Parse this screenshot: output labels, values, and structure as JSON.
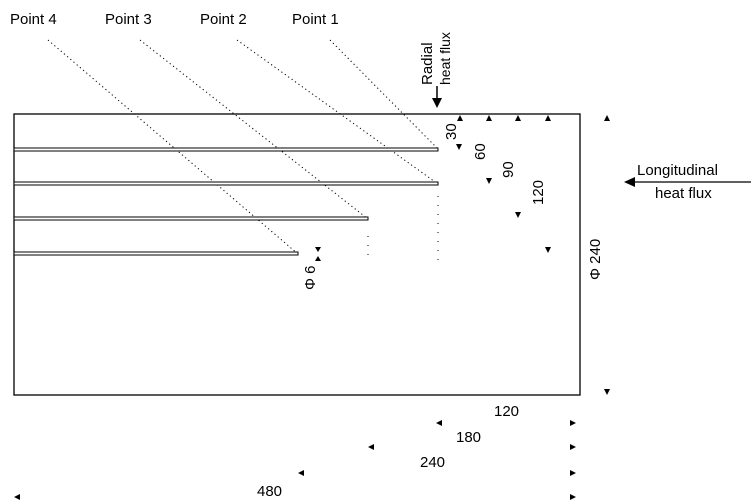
{
  "point_labels": [
    "Point 4",
    "Point 3",
    "Point 2",
    "Point 1"
  ],
  "radial_flux": {
    "line1": "Radial",
    "line2": "heat flux"
  },
  "longitudinal_flux": {
    "line1": "Longitudinal",
    "line2": "heat flux"
  },
  "depth_labels": [
    "30",
    "60",
    "90",
    "120"
  ],
  "hole_diameter_label": "Φ 6",
  "specimen_diameter_label": "Φ 240",
  "length_labels": [
    "120",
    "180",
    "240",
    "480"
  ]
}
